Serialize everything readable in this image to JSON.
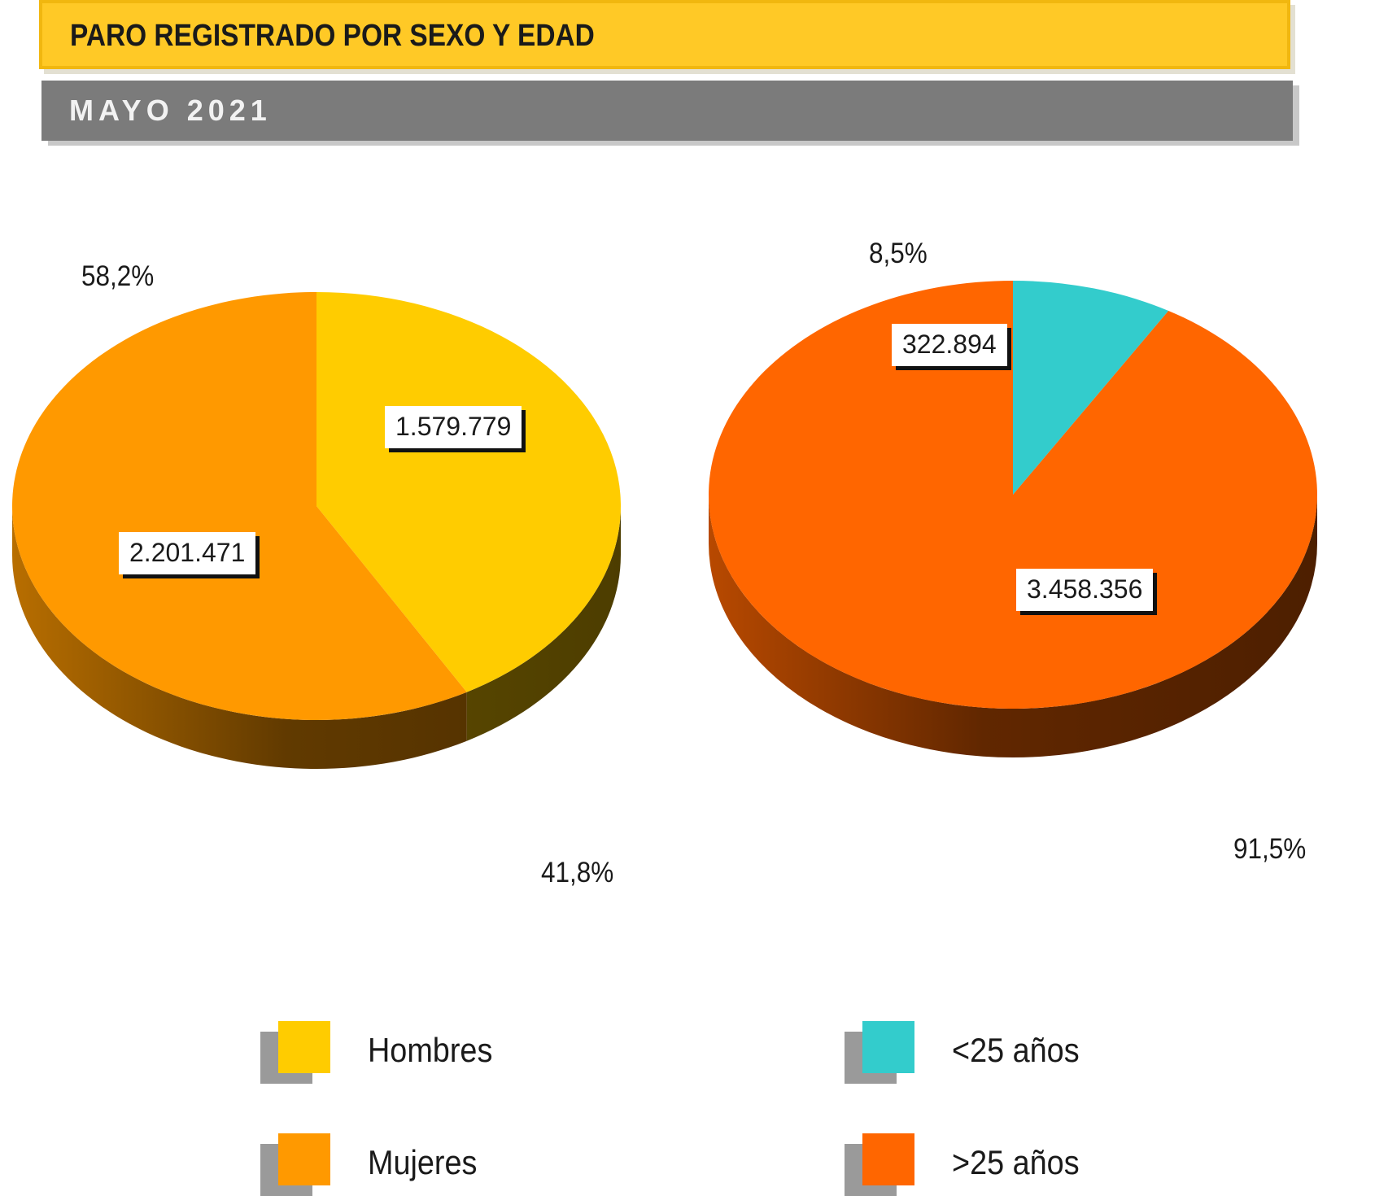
{
  "header": {
    "title": "PARO REGISTRADO POR SEXO Y EDAD",
    "subtitle": "MAYO 2021"
  },
  "colors": {
    "hombres": "#ffcc00",
    "mujeres": "#ff9900",
    "menores25": "#33cccc",
    "mayores25": "#ff6600"
  },
  "chart_data": [
    {
      "type": "pie",
      "slices": [
        {
          "name": "Hombres",
          "value": 1579779,
          "value_label": "1.579.779",
          "percent_label": "41,8%",
          "color": "#ffcc00"
        },
        {
          "name": "Mujeres",
          "value": 2201471,
          "value_label": "2.201.471",
          "percent_label": "58,2%",
          "color": "#ff9900"
        }
      ],
      "legend": "bottom",
      "style": "3d"
    },
    {
      "type": "pie",
      "slices": [
        {
          "name": "<25 años",
          "value": 322894,
          "value_label": "322.894",
          "percent_label": "8,5%",
          "color": "#33cccc"
        },
        {
          "name": ">25 años",
          "value": 3458356,
          "value_label": "3.458.356",
          "percent_label": "91,5%",
          "color": "#ff6600"
        }
      ],
      "legend": "bottom",
      "style": "3d"
    }
  ],
  "legend": {
    "items": [
      {
        "label": "Hombres",
        "color": "#ffcc00"
      },
      {
        "label": "Mujeres",
        "color": "#ff9900"
      },
      {
        "label": "<25 años",
        "color": "#33cccc"
      },
      {
        "label": ">25 años",
        "color": "#ff6600"
      }
    ]
  }
}
